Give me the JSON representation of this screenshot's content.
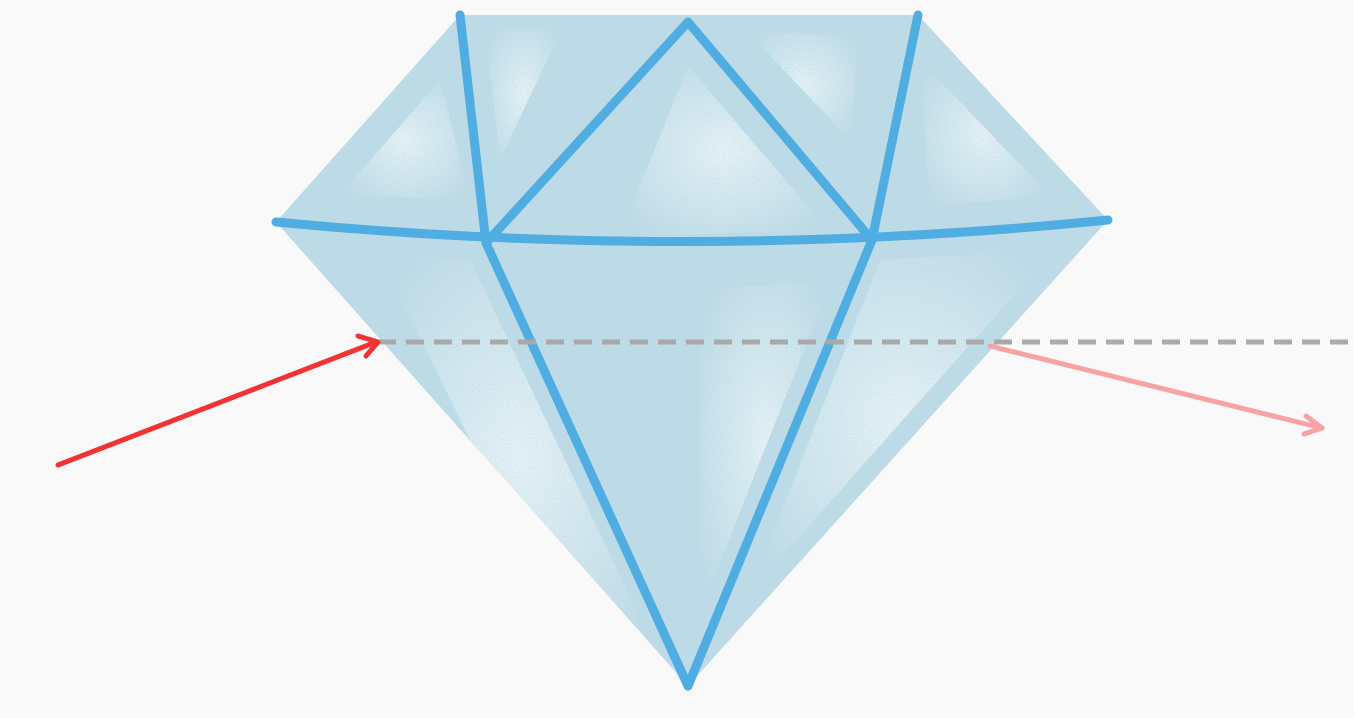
{
  "colors": {
    "background": "#f9f9fa",
    "diamond_fill": "#bddbe7",
    "diamond_edges": "#4fade1",
    "facet_highlight": "#ffffff",
    "incident_ray": "#f23333",
    "refracted_ray": "#f7a3a3",
    "normal_line": "#a9a9a9"
  },
  "icons": {
    "diamond": "diamond-icon",
    "incident_ray": "arrow-right-icon",
    "refracted_ray": "arrow-right-icon"
  }
}
